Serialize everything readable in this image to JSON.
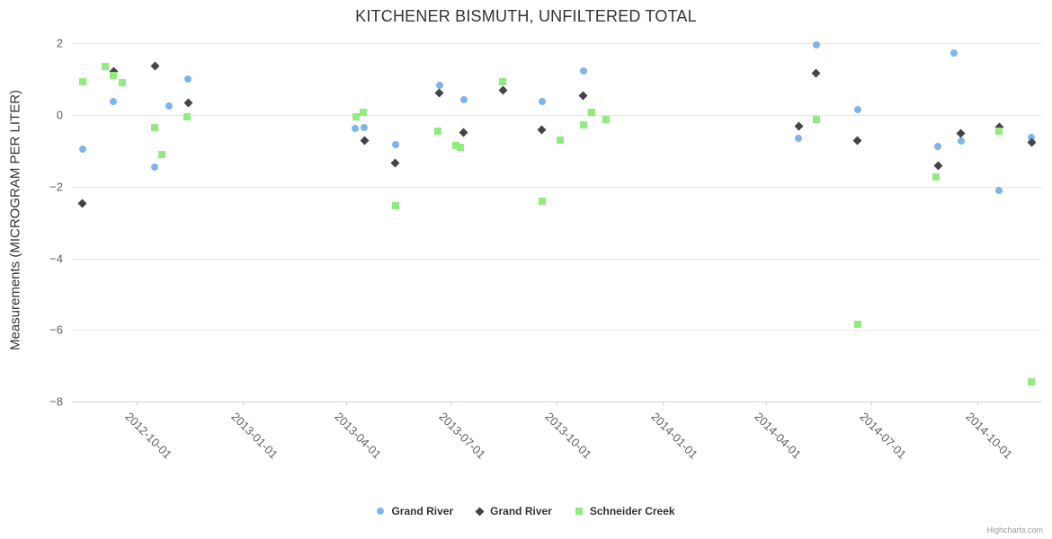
{
  "title": "KITCHENER BISMUTH, UNFILTERED TOTAL",
  "credits_label": "Highcharts.com",
  "chart_data": {
    "type": "scatter",
    "title": "KITCHENER BISMUTH, UNFILTERED TOTAL",
    "xlabel": "",
    "ylabel": "Measurements (MICROGRAM PER LITER)",
    "ylim": [
      -8,
      2
    ],
    "grid": "horizontal-only",
    "legend_position": "bottom-center",
    "ytick_values": [
      2,
      0,
      -2,
      -4,
      -6,
      -8
    ],
    "ytick_labels": [
      "2",
      "0",
      "−2",
      "−4",
      "−6",
      "−8"
    ],
    "xtick_labels": [
      "2012-10-01",
      "2013-01-01",
      "2013-04-01",
      "2013-07-01",
      "2013-10-01",
      "2014-01-01",
      "2014-04-01",
      "2014-07-01",
      "2014-10-01"
    ],
    "x_range_dates": [
      "2012-08-05",
      "2014-11-26"
    ],
    "series": [
      {
        "name": "Grand River",
        "marker": "circle",
        "color": "#7cb5ec",
        "points": [
          {
            "date": "2012-08-15",
            "value": -0.95
          },
          {
            "date": "2012-09-11",
            "value": 0.37
          },
          {
            "date": "2012-10-17",
            "value": -1.45
          },
          {
            "date": "2012-10-29",
            "value": 0.25
          },
          {
            "date": "2012-11-15",
            "value": 1.0
          },
          {
            "date": "2013-04-09",
            "value": -0.38
          },
          {
            "date": "2013-04-17",
            "value": -0.36
          },
          {
            "date": "2013-05-14",
            "value": -0.82
          },
          {
            "date": "2013-06-21",
            "value": 0.83
          },
          {
            "date": "2013-07-12",
            "value": 0.43
          },
          {
            "date": "2013-09-18",
            "value": 0.37
          },
          {
            "date": "2013-10-24",
            "value": 1.22
          },
          {
            "date": "2014-04-29",
            "value": -0.65
          },
          {
            "date": "2014-05-14",
            "value": 1.94
          },
          {
            "date": "2014-06-19",
            "value": 0.14
          },
          {
            "date": "2014-08-28",
            "value": -0.89
          },
          {
            "date": "2014-09-11",
            "value": 1.72
          },
          {
            "date": "2014-09-17",
            "value": -0.73
          },
          {
            "date": "2014-10-20",
            "value": -2.11
          },
          {
            "date": "2014-11-17",
            "value": -0.62
          }
        ]
      },
      {
        "name": "Grand River",
        "marker": "diamond",
        "color": "#434348",
        "points": [
          {
            "date": "2012-08-15",
            "value": -2.47
          },
          {
            "date": "2012-09-11",
            "value": 1.2
          },
          {
            "date": "2012-10-17",
            "value": 1.37
          },
          {
            "date": "2012-11-15",
            "value": 0.33
          },
          {
            "date": "2013-04-17",
            "value": -0.73
          },
          {
            "date": "2013-05-14",
            "value": -1.34
          },
          {
            "date": "2013-06-21",
            "value": 0.6
          },
          {
            "date": "2013-07-12",
            "value": -0.49
          },
          {
            "date": "2013-08-15",
            "value": 0.69
          },
          {
            "date": "2013-09-18",
            "value": -0.43
          },
          {
            "date": "2013-10-24",
            "value": 0.53
          },
          {
            "date": "2014-04-29",
            "value": -0.33
          },
          {
            "date": "2014-05-14",
            "value": 1.17
          },
          {
            "date": "2014-06-19",
            "value": -0.73
          },
          {
            "date": "2014-08-28",
            "value": -1.41
          },
          {
            "date": "2014-09-17",
            "value": -0.51
          },
          {
            "date": "2014-10-20",
            "value": -0.34
          },
          {
            "date": "2014-11-17",
            "value": -0.78
          }
        ]
      },
      {
        "name": "Schneider Creek",
        "marker": "square",
        "color": "#90ed7d",
        "points": [
          {
            "date": "2012-08-15",
            "value": 0.92
          },
          {
            "date": "2012-09-04",
            "value": 1.35
          },
          {
            "date": "2012-09-11",
            "value": 1.1
          },
          {
            "date": "2012-09-19",
            "value": 0.9
          },
          {
            "date": "2012-10-17",
            "value": -0.35
          },
          {
            "date": "2012-10-23",
            "value": -1.12
          },
          {
            "date": "2012-11-14",
            "value": -0.05
          },
          {
            "date": "2013-04-10",
            "value": -0.06
          },
          {
            "date": "2013-04-16",
            "value": 0.07
          },
          {
            "date": "2013-05-14",
            "value": -2.54
          },
          {
            "date": "2013-06-20",
            "value": -0.46
          },
          {
            "date": "2013-07-05",
            "value": -0.86
          },
          {
            "date": "2013-07-09",
            "value": -0.91
          },
          {
            "date": "2013-08-15",
            "value": 0.92
          },
          {
            "date": "2013-09-18",
            "value": -2.4
          },
          {
            "date": "2013-10-04",
            "value": -0.71
          },
          {
            "date": "2013-10-24",
            "value": -0.28
          },
          {
            "date": "2013-10-31",
            "value": 0.06
          },
          {
            "date": "2013-11-13",
            "value": -0.14
          },
          {
            "date": "2014-05-14",
            "value": -0.14
          },
          {
            "date": "2014-06-19",
            "value": -5.83
          },
          {
            "date": "2014-08-26",
            "value": -1.73
          },
          {
            "date": "2014-10-20",
            "value": -0.45
          },
          {
            "date": "2014-11-17",
            "value": -7.43
          }
        ]
      }
    ]
  }
}
